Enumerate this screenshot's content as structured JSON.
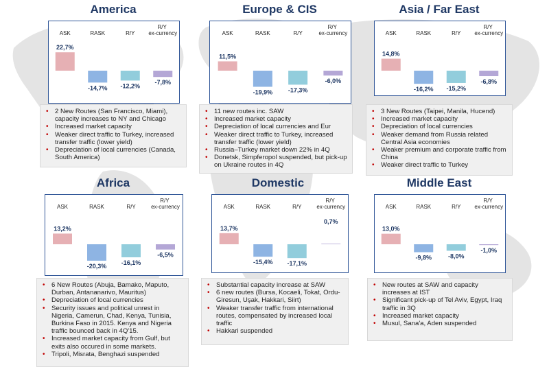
{
  "colors": {
    "ask": "#e6b0b4",
    "rask": "#8eb4e3",
    "ry": "#92cddc",
    "ry_ex": "#b4a7d6",
    "title": "#1f3864",
    "frame": "#2f5597",
    "bullet": "#c00000"
  },
  "chart_data": [
    {
      "type": "bar",
      "title": "America",
      "categories": [
        "ASK",
        "RASK",
        "R/Y",
        "R/Y ex-currency"
      ],
      "values": [
        22.7,
        -14.7,
        -12.2,
        -7.8
      ],
      "value_labels": [
        "22,7%",
        "-14,7%",
        "-12,2%",
        "-7,8%"
      ]
    },
    {
      "type": "bar",
      "title": "Europe & CIS",
      "categories": [
        "ASK",
        "RASK",
        "R/Y",
        "R/Y ex-currency"
      ],
      "values": [
        11.5,
        -19.9,
        -17.3,
        -6.0
      ],
      "value_labels": [
        "11,5%",
        "-19,9%",
        "-17,3%",
        "-6,0%"
      ]
    },
    {
      "type": "bar",
      "title": "Asia / Far East",
      "categories": [
        "ASK",
        "RASK",
        "R/Y",
        "R/Y ex-currency"
      ],
      "values": [
        14.8,
        -16.2,
        -15.2,
        -6.8
      ],
      "value_labels": [
        "14,8%",
        "-16,2%",
        "-15,2%",
        "-6,8%"
      ]
    },
    {
      "type": "bar",
      "title": "Africa",
      "categories": [
        "ASK",
        "RASK",
        "R/Y",
        "R/Y ex-currency"
      ],
      "values": [
        13.2,
        -20.3,
        -16.1,
        -6.5
      ],
      "value_labels": [
        "13,2%",
        "-20,3%",
        "-16,1%",
        "-6,5%"
      ]
    },
    {
      "type": "bar",
      "title": "Domestic",
      "categories": [
        "ASK",
        "RASK",
        "R/Y",
        "R/Y ex-currency"
      ],
      "values": [
        13.7,
        -15.4,
        -17.1,
        0.7
      ],
      "value_labels": [
        "13,7%",
        "-15,4%",
        "-17,1%",
        "0,7%"
      ]
    },
    {
      "type": "bar",
      "title": "Middle East",
      "categories": [
        "ASK",
        "RASK",
        "R/Y",
        "R/Y ex-currency"
      ],
      "values": [
        13.0,
        -9.8,
        -8.0,
        -1.0
      ],
      "value_labels": [
        "13,0%",
        "-9,8%",
        "-8,0%",
        "-1,0%"
      ]
    }
  ],
  "notes": [
    [
      "2 New Routes (San Francisco, Miami), capacity increases to NY and Chicago",
      "Increased market capacity",
      "Weaker direct traffic to Turkey, increased transfer traffic (lower yield)",
      "Depreciation of local currencies (Canada, South America)"
    ],
    [
      "11 new routes inc. SAW",
      "Increased market capacity",
      "Depreciation of local currencies and Eur",
      "Weaker direct traffic to Turkey, increased transfer traffic (lower yield)",
      "Russia–Turkey market down 22% in 4Q",
      "Donetsk, Simpferopol suspended, but pick-up on Ukraine routes in 4Q"
    ],
    [
      "3 New Routes (Taipei, Manila, Hucend)",
      "Increased market capacity",
      "Depreciation of local currencies",
      "Weaker demand from Russia related Central Asia economies",
      "Weaker premium and corporate traffic from China",
      "Weaker direct traffic to Turkey"
    ],
    [
      "6 New Routes (Abuja, Bamako, Maputo, Durban, Antananarivo, Mauritus)",
      "Depreciation of local currencies",
      "Security issues and political unrest in Nigeria, Camerun, Chad, Kenya, Tunisia, Burkina Faso in 2015. Kenya and Nigeria traffic bounced back in 4Q'15.",
      "Increased market capacity from Gulf, but exits also occured in some markets.",
      "Tripoli, Misrata, Benghazi suspended"
    ],
    [
      "Substantial capacity increase at SAW",
      "6 new routes (Bursa, Kocaeli, Tokat, Ordu-Giresun, Uşak, Hakkari, Siirt)",
      "Weaker transfer traffic from international routes, compensated by increased local traffic",
      "Hakkari suspended"
    ],
    [
      "New routes at SAW and capacity increases at IST",
      "Significant pick-up of Tel Aviv, Egypt, Iraq traffic in 3Q",
      "Increased market capacity",
      "Musul, Sana'a, Aden suspended"
    ]
  ]
}
